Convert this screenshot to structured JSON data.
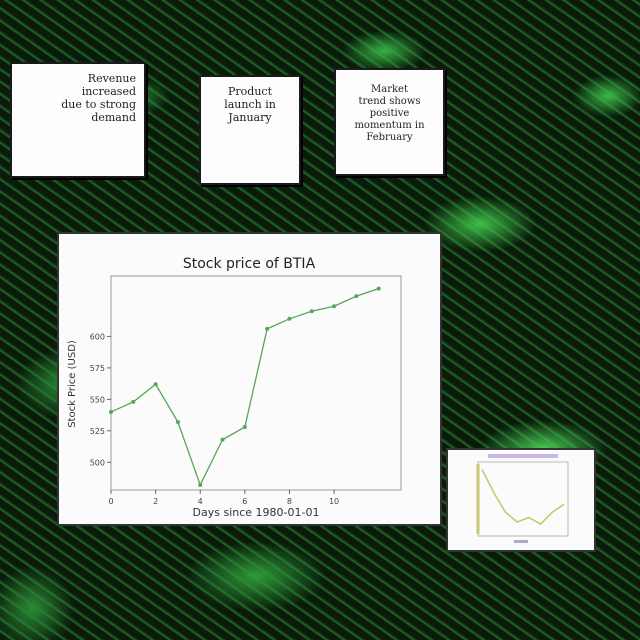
{
  "notes": [
    {
      "lines": [
        "Revenue",
        "increased",
        "due to strong",
        "demand"
      ]
    },
    {
      "lines": [
        "Product",
        "launch in",
        "January"
      ]
    },
    {
      "lines": [
        "Market",
        "trend shows",
        "positive",
        "momentum in",
        "February"
      ]
    }
  ],
  "chart_data": {
    "type": "line",
    "title": "Stock price of BTIA",
    "xlabel": "Days since 1980-01-01",
    "ylabel": "Stock Price (USD)",
    "x": [
      0,
      1,
      2,
      3,
      4,
      5,
      6,
      7,
      8,
      9,
      10,
      11,
      12
    ],
    "values": [
      540,
      548,
      562,
      532,
      482,
      518,
      528,
      606,
      614,
      620,
      624,
      632,
      638
    ],
    "xlim": [
      0,
      13
    ],
    "ylim": [
      478,
      648
    ],
    "xticks": [
      0,
      2,
      4,
      6,
      8,
      10
    ],
    "xtick_labels": [
      "0",
      "2",
      "4",
      "6",
      "8",
      "10"
    ],
    "yticks": [
      500,
      525,
      550,
      575,
      600
    ],
    "ytick_labels": [
      "500",
      "525",
      "550",
      "575",
      "600"
    ],
    "grid": false,
    "line_color": "#55a855"
  },
  "thumbnail_chart": {
    "type": "line",
    "values": [
      0.95,
      0.6,
      0.3,
      0.15,
      0.22,
      0.12,
      0.3,
      0.42
    ],
    "ylim": [
      0,
      1
    ],
    "line_color": "#c8c870",
    "accent_color": "#8a9a6a"
  }
}
